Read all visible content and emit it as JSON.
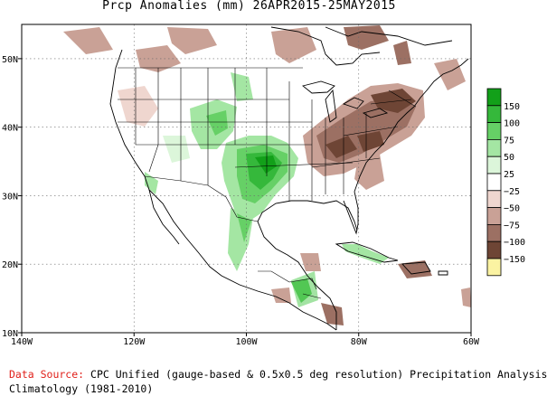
{
  "title": "Prcp Anomalies (mm) 26APR2015-25MAY2015",
  "map": {
    "lon_range": [
      -140,
      -60
    ],
    "lat_range": [
      10,
      55
    ],
    "x_ticks": [
      {
        "lon": -140,
        "label": "140W"
      },
      {
        "lon": -120,
        "label": "120W"
      },
      {
        "lon": -100,
        "label": "100W"
      },
      {
        "lon": -80,
        "label": "80W"
      },
      {
        "lon": -60,
        "label": "60W"
      }
    ],
    "y_ticks": [
      {
        "lat": 10,
        "label": "10N"
      },
      {
        "lat": 20,
        "label": "20N"
      },
      {
        "lat": 30,
        "label": "30N"
      },
      {
        "lat": 40,
        "label": "40N"
      },
      {
        "lat": 50,
        "label": "50N"
      }
    ]
  },
  "legend": {
    "bins": [
      {
        "color": "#12a019",
        "label": "150"
      },
      {
        "color": "#35b83b",
        "label": "100"
      },
      {
        "color": "#66d066",
        "label": "75"
      },
      {
        "color": "#a4e6a3",
        "label": "50"
      },
      {
        "color": "#dcf6da",
        "label": "25"
      },
      {
        "color": "#ffffff",
        "label": "−25"
      },
      {
        "color": "#efd6cf",
        "label": "−50"
      },
      {
        "color": "#c9a196",
        "label": "−75"
      },
      {
        "color": "#9c7063",
        "label": "−100"
      },
      {
        "color": "#6e4535",
        "label": "−150"
      },
      {
        "color": "#fbf3a2",
        "label": ""
      }
    ]
  },
  "footer": {
    "source_label": "Data Source:",
    "source_text": " CPC Unified (gauge-based & 0.5x0.5 deg resolution) Precipitation Analysis",
    "climatology": "Climatology (1981-2010)"
  }
}
